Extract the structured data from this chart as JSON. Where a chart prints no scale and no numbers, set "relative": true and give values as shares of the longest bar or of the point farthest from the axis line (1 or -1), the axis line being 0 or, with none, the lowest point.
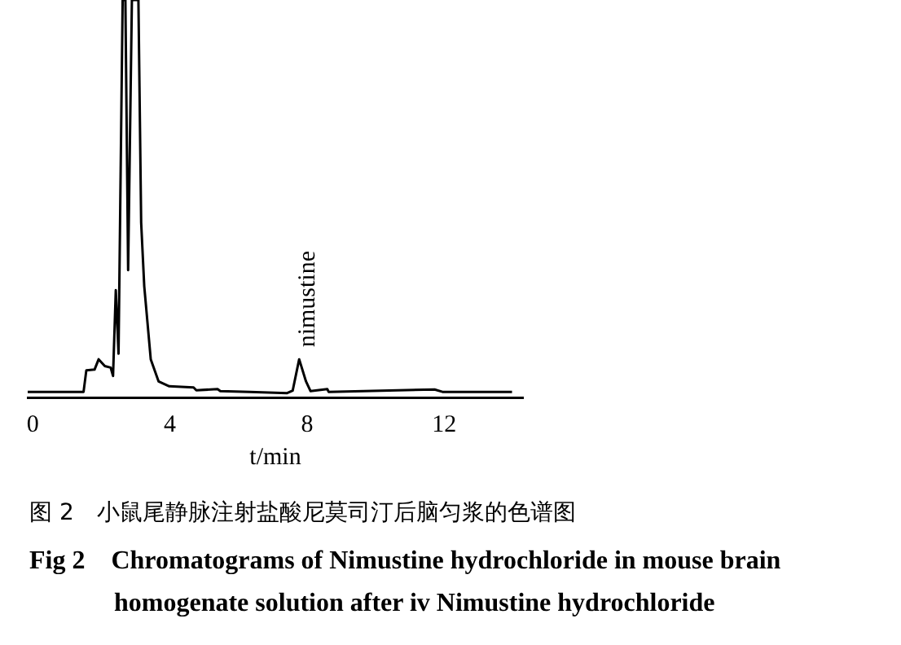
{
  "chart_data": {
    "type": "line",
    "relative": true,
    "xlabel": "t/min",
    "xlim": [
      -0.15,
      14.3
    ],
    "xticks": [
      0,
      4,
      8,
      12
    ],
    "series": [
      {
        "color": "#000000",
        "x": [
          -0.15,
          1.48,
          1.56,
          1.8,
          1.92,
          2.1,
          2.27,
          2.34,
          2.42,
          2.5,
          2.62,
          2.7,
          2.78,
          2.89,
          3.08,
          3.16,
          3.25,
          3.44,
          3.67,
          3.98,
          4.69,
          4.77,
          5.39,
          5.47,
          6.33,
          7.42,
          7.58,
          7.77,
          7.97,
          8.1,
          8.59,
          8.63,
          11.72,
          11.95,
          13.98
        ],
        "values": [
          0.014,
          0.014,
          0.068,
          0.07,
          0.096,
          0.079,
          0.075,
          0.054,
          0.27,
          0.11,
          1,
          1,
          0.32,
          1,
          1,
          0.44,
          0.28,
          0.096,
          0.04,
          0.028,
          0.025,
          0.018,
          0.021,
          0.016,
          0.014,
          0.011,
          0.017,
          0.096,
          0.04,
          0.016,
          0.021,
          0.014,
          0.02,
          0.014,
          0.014
        ]
      }
    ],
    "annotations": [
      {
        "text": "nimustine",
        "x": 7.8,
        "y": 0.11
      },
      "图 2　小鼠尾静脉注射盐酸尼莫司汀后脑匀浆的色谱图",
      "Fig 2　Chromatograms of Nimustine hydrochloride in mouse brain",
      "homogenate solution after iv Nimustine hydrochloride"
    ]
  }
}
